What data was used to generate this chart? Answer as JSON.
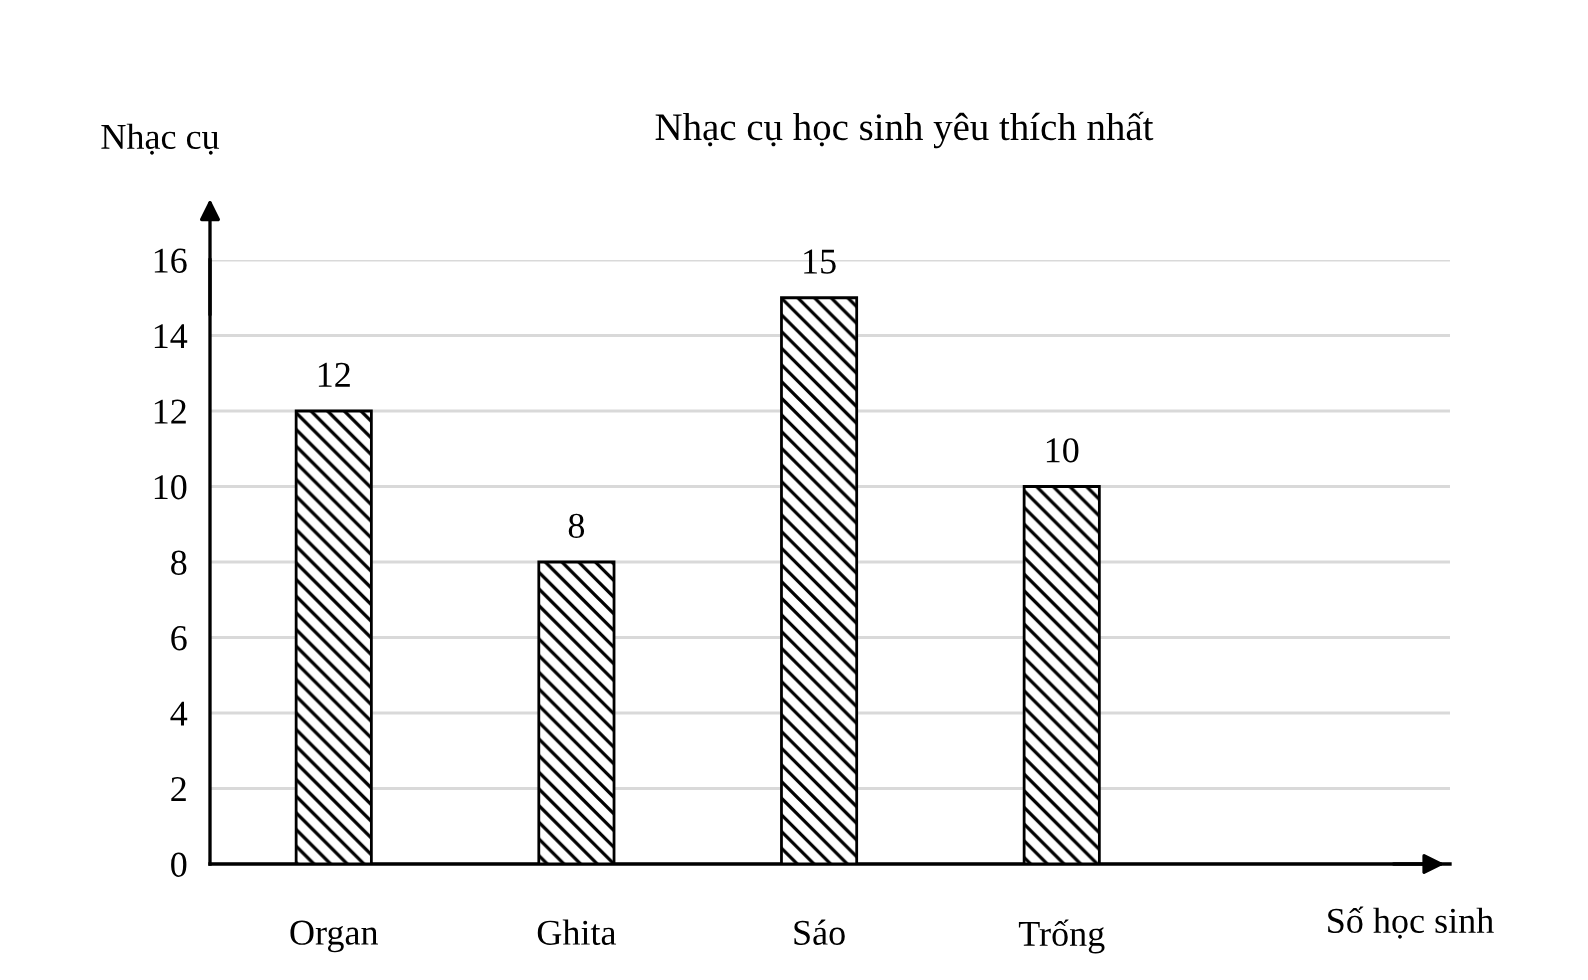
{
  "chart_data": {
    "type": "bar",
    "title": "Nhạc cụ học sinh yêu thích nhất",
    "xlabel": "Số học sinh",
    "ylabel": "Nhạc cụ",
    "categories": [
      "Organ",
      "Ghita",
      "Sáo",
      "Trống"
    ],
    "values": [
      12,
      8,
      15,
      10
    ],
    "color": "#000000",
    "ylim": [
      0,
      16
    ],
    "yticks": [
      0,
      2,
      4,
      6,
      8,
      10,
      12,
      14,
      16
    ],
    "grid": "y",
    "data_labels": true
  }
}
